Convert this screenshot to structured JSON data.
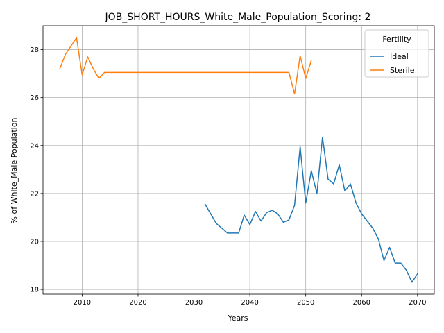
{
  "chart_data": {
    "type": "line",
    "title": "JOB_SHORT_HOURS_White_Male_Population_Scoring: 2",
    "xlabel": "Years",
    "ylabel": "% of White_Male Population",
    "xlim": [
      2003,
      2073
    ],
    "ylim": [
      17.8,
      29.0
    ],
    "xticks": [
      2010,
      2020,
      2030,
      2040,
      2050,
      2060,
      2070
    ],
    "yticks": [
      18,
      20,
      22,
      24,
      26,
      28
    ],
    "grid": true,
    "legend": {
      "title": "Fertility",
      "placement": "top-right"
    },
    "series": [
      {
        "name": "Ideal",
        "color": "#1f77b4",
        "x": [
          2032,
          2033,
          2034,
          2035,
          2036,
          2037,
          2038,
          2039,
          2040,
          2041,
          2042,
          2043,
          2044,
          2045,
          2046,
          2047,
          2048,
          2049,
          2050,
          2051,
          2052,
          2053,
          2054,
          2055,
          2056,
          2057,
          2058,
          2059,
          2060,
          2061,
          2062,
          2063,
          2064,
          2065,
          2066,
          2067,
          2068,
          2069,
          2070
        ],
        "y": [
          21.55,
          21.15,
          20.75,
          20.55,
          20.35,
          20.35,
          20.35,
          21.1,
          20.7,
          21.25,
          20.85,
          21.2,
          21.3,
          21.15,
          20.8,
          20.9,
          21.5,
          23.95,
          21.6,
          22.95,
          22.0,
          24.35,
          22.6,
          22.4,
          23.2,
          22.1,
          22.4,
          21.6,
          21.15,
          20.85,
          20.55,
          20.1,
          19.2,
          19.75,
          19.1,
          19.1,
          18.8,
          18.3,
          18.65
        ]
      },
      {
        "name": "Sterile",
        "color": "#ff7f0e",
        "x": [
          2006,
          2007,
          2008,
          2009,
          2010,
          2011,
          2012,
          2013,
          2014,
          2015,
          2016,
          2017,
          2018,
          2019,
          2020,
          2021,
          2022,
          2023,
          2024,
          2025,
          2026,
          2027,
          2028,
          2029,
          2030,
          2031,
          2032,
          2033,
          2034,
          2035,
          2036,
          2037,
          2038,
          2039,
          2040,
          2041,
          2042,
          2043,
          2044,
          2045,
          2046,
          2047,
          2048,
          2049,
          2050,
          2051
        ],
        "y": [
          27.2,
          27.8,
          28.15,
          28.5,
          26.95,
          27.7,
          27.2,
          26.8,
          27.05,
          27.05,
          27.05,
          27.05,
          27.05,
          27.05,
          27.05,
          27.05,
          27.05,
          27.05,
          27.05,
          27.05,
          27.05,
          27.05,
          27.05,
          27.05,
          27.05,
          27.05,
          27.05,
          27.05,
          27.05,
          27.05,
          27.05,
          27.05,
          27.05,
          27.05,
          27.05,
          27.05,
          27.05,
          27.05,
          27.05,
          27.05,
          27.05,
          27.05,
          26.15,
          27.75,
          26.8,
          27.55
        ]
      }
    ]
  }
}
